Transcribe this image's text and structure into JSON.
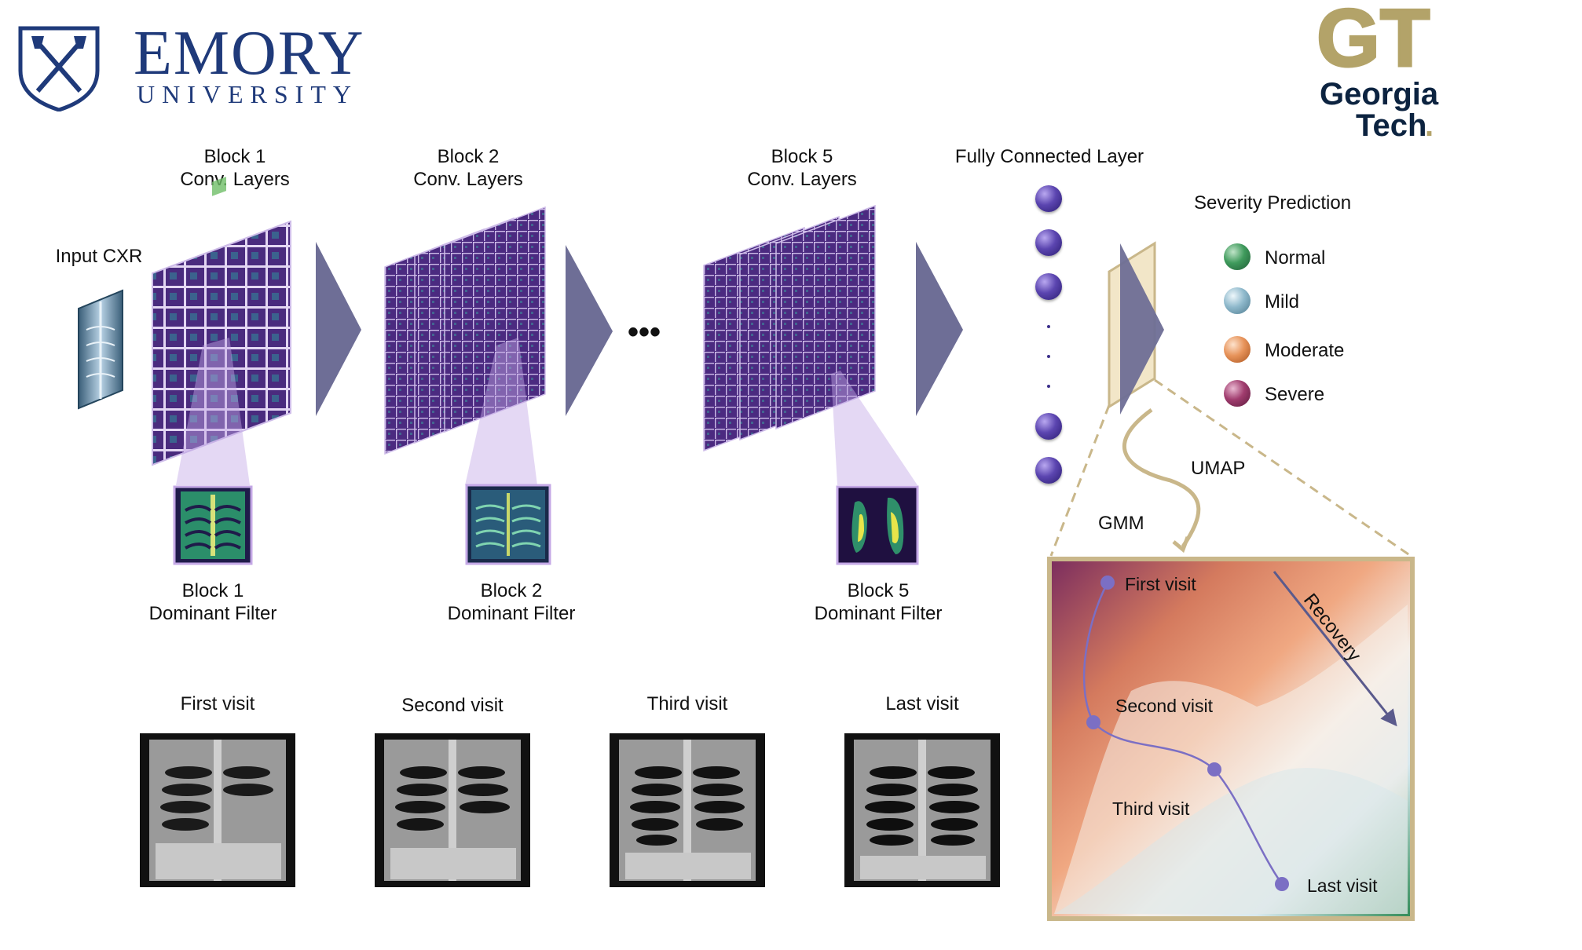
{
  "logos": {
    "emory_name": "EMORY",
    "emory_sub": "UNIVERSITY",
    "gt_monogram": "GT",
    "gt_word1": "Georgia",
    "gt_word2": "Tech",
    "gt_mark": "."
  },
  "pipeline": {
    "input_label": "Input CXR",
    "blocks": [
      {
        "title": "Block 1",
        "subtitle": "Conv. Layers",
        "filter_title": "Block 1",
        "filter_subtitle": "Dominant Filter"
      },
      {
        "title": "Block 2",
        "subtitle": "Conv. Layers",
        "filter_title": "Block 2",
        "filter_subtitle": "Dominant Filter"
      },
      {
        "title": "Block 5",
        "subtitle": "Conv. Layers",
        "filter_title": "Block 5",
        "filter_subtitle": "Dominant Filter"
      }
    ],
    "ellipsis": "•••",
    "fc_label": "Fully Connected Layer",
    "umap_label": "UMAP",
    "gmm_label": "GMM"
  },
  "severity": {
    "title": "Severity Prediction",
    "classes": [
      {
        "label": "Normal",
        "color": "#3f9a5c"
      },
      {
        "label": "Mild",
        "color": "#8fb9cc"
      },
      {
        "label": "Moderate",
        "color": "#e7935a"
      },
      {
        "label": "Severe",
        "color": "#a03c6e"
      }
    ]
  },
  "visits": [
    {
      "label": "First visit"
    },
    {
      "label": "Second visit"
    },
    {
      "label": "Third visit"
    },
    {
      "label": "Last visit"
    }
  ],
  "trajectory": {
    "points": [
      {
        "label": "First visit"
      },
      {
        "label": "Second visit"
      },
      {
        "label": "Third visit"
      },
      {
        "label": "Last visit"
      }
    ],
    "arrow_label": "Recovery",
    "frame_color": "#c9b78a",
    "path_color": "#7b6fc4"
  },
  "colors": {
    "arrow": "#6e6e96",
    "feature_map": "#4b2a80",
    "callout": "#c4a8e6"
  }
}
